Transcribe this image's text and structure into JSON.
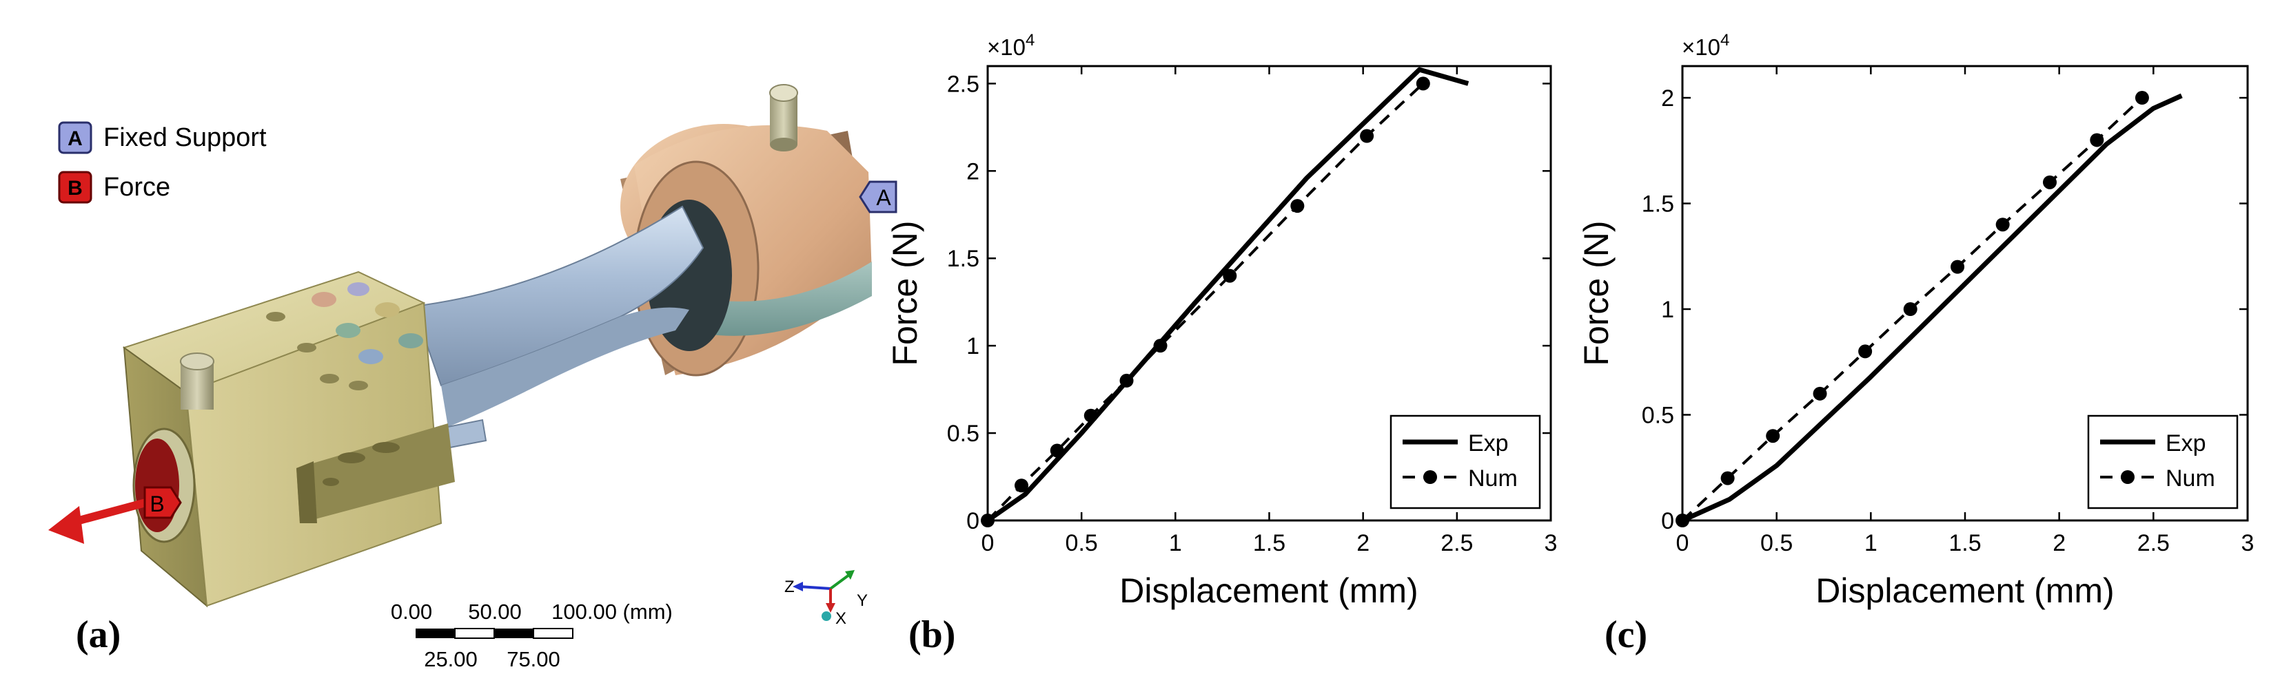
{
  "panel_a": {
    "label": "(a)",
    "legend": [
      {
        "key": "A",
        "text": "Fixed Support",
        "color": "#9aa3e0"
      },
      {
        "key": "B",
        "text": "Force",
        "color": "#d81c1c"
      }
    ],
    "callout_a": "A",
    "callout_b": "B",
    "scale_top": [
      "0.00",
      "50.00",
      "100.00 (mm)"
    ],
    "scale_bottom": [
      "25.00",
      "75.00"
    ],
    "triad": {
      "z": "Z",
      "x": "X",
      "y": "Y"
    }
  },
  "chart_data": [
    {
      "panel_label": "(b)",
      "type": "line",
      "xlabel": "Displacement (mm)",
      "ylabel": "Force (N)",
      "exponent_label": "×10",
      "exponent_power": "4",
      "xlim": [
        0,
        3
      ],
      "ylim": [
        0,
        2.6
      ],
      "xticks": [
        0,
        0.5,
        1,
        1.5,
        2,
        2.5,
        3
      ],
      "xtick_labels": [
        "0",
        "0.5",
        "1",
        "1.5",
        "2",
        "2.5",
        "3"
      ],
      "yticks": [
        0,
        0.5,
        1,
        1.5,
        2,
        2.5
      ],
      "ytick_labels": [
        "0",
        "0.5",
        "1",
        "1.5",
        "2",
        "2.5"
      ],
      "legend": [
        "Exp",
        "Num"
      ],
      "series": [
        {
          "name": "Exp",
          "style": "solid",
          "x": [
            0,
            0.2,
            0.5,
            0.8,
            1.1,
            1.4,
            1.7,
            2.0,
            2.3,
            2.56
          ],
          "y": [
            0,
            0.15,
            0.5,
            0.87,
            1.24,
            1.6,
            1.96,
            2.27,
            2.58,
            2.5
          ]
        },
        {
          "name": "Num",
          "style": "dashed",
          "x": [
            0,
            0.18,
            0.37,
            0.55,
            0.74,
            0.92,
            1.29,
            1.65,
            2.02,
            2.32
          ],
          "y": [
            0,
            0.2,
            0.4,
            0.6,
            0.8,
            1.0,
            1.4,
            1.8,
            2.2,
            2.5
          ]
        }
      ]
    },
    {
      "panel_label": "(c)",
      "type": "line",
      "xlabel": "Displacement (mm)",
      "ylabel": "Force (N)",
      "exponent_label": "×10",
      "exponent_power": "4",
      "xlim": [
        0,
        3
      ],
      "ylim": [
        0,
        2.15
      ],
      "xticks": [
        0,
        0.5,
        1,
        1.5,
        2,
        2.5,
        3
      ],
      "xtick_labels": [
        "0",
        "0.5",
        "1",
        "1.5",
        "2",
        "2.5",
        "3"
      ],
      "yticks": [
        0,
        0.5,
        1,
        1.5,
        2
      ],
      "ytick_labels": [
        "0",
        "0.5",
        "1",
        "1.5",
        "2"
      ],
      "legend": [
        "Exp",
        "Num"
      ],
      "series": [
        {
          "name": "Exp",
          "style": "solid",
          "x": [
            0,
            0.25,
            0.5,
            0.75,
            1.0,
            1.25,
            1.5,
            1.75,
            2.0,
            2.25,
            2.5,
            2.65
          ],
          "y": [
            0,
            0.1,
            0.26,
            0.47,
            0.68,
            0.9,
            1.12,
            1.34,
            1.56,
            1.78,
            1.95,
            2.01
          ]
        },
        {
          "name": "Num",
          "style": "dashed",
          "x": [
            0,
            0.24,
            0.48,
            0.73,
            0.97,
            1.21,
            1.46,
            1.7,
            1.95,
            2.2,
            2.44
          ],
          "y": [
            0,
            0.2,
            0.4,
            0.6,
            0.8,
            1.0,
            1.2,
            1.4,
            1.6,
            1.8,
            2.0
          ]
        }
      ]
    }
  ]
}
